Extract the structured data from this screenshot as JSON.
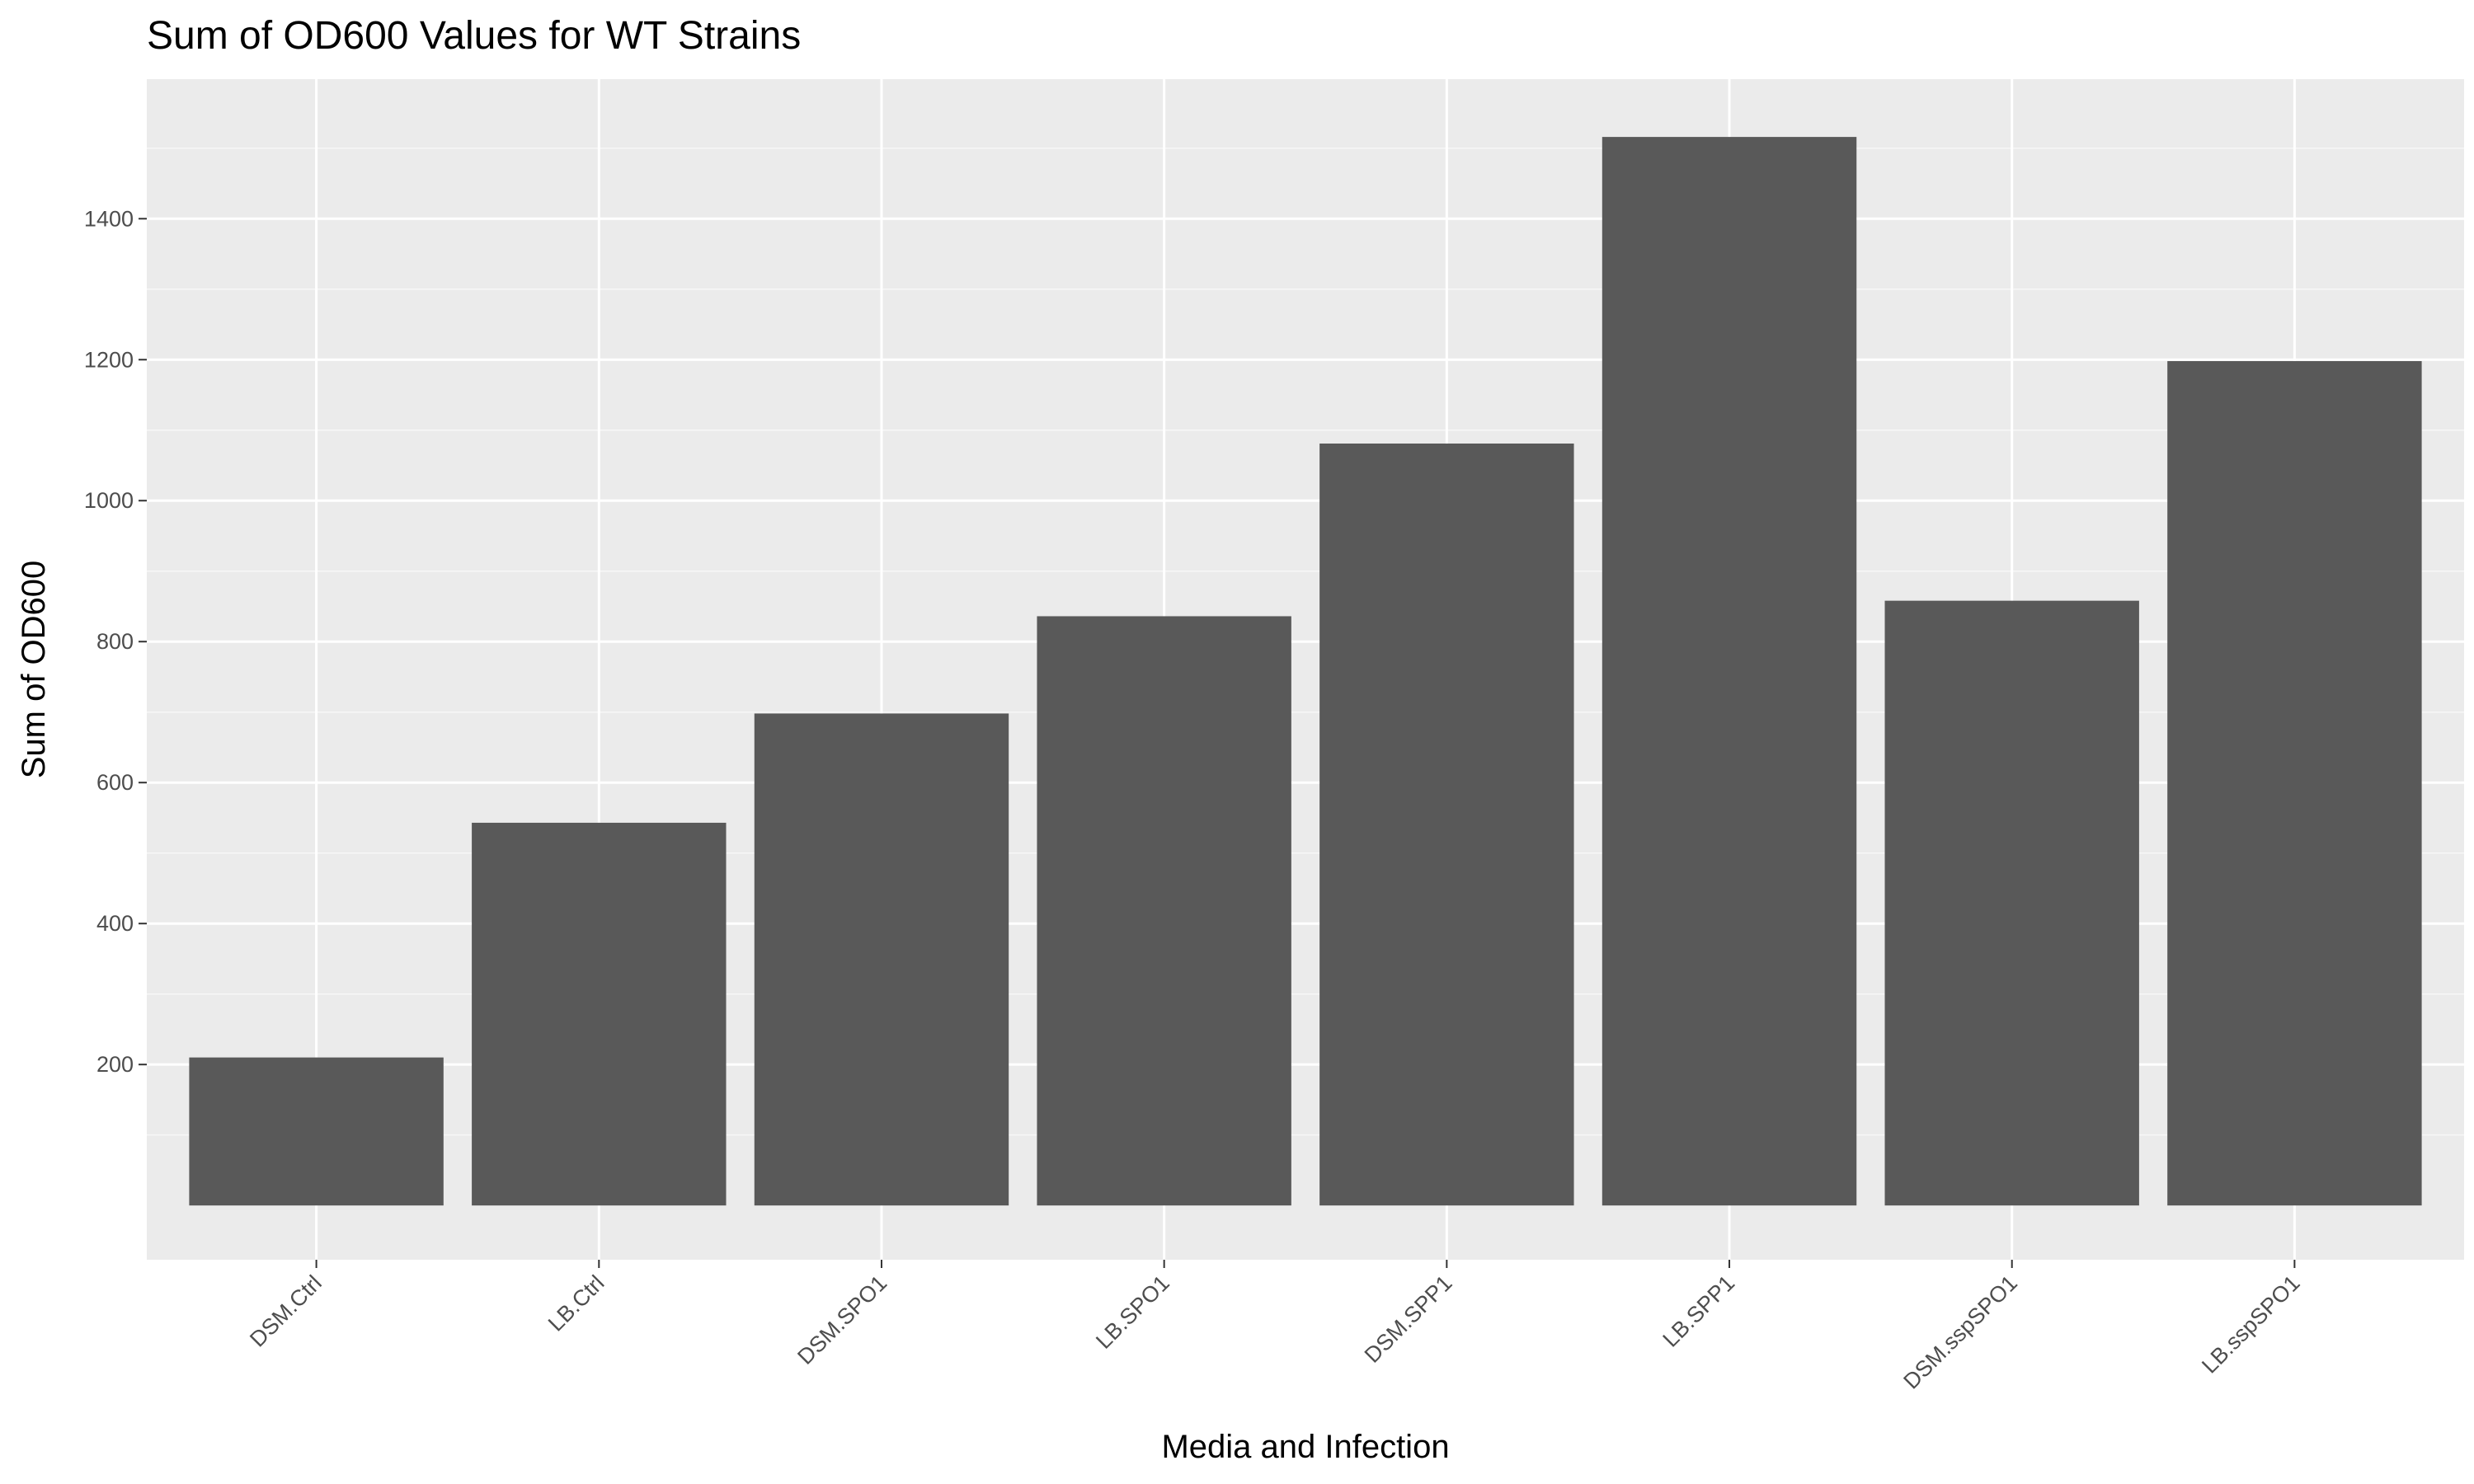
{
  "chart_data": {
    "type": "bar",
    "title": "Sum of OD600 Values for WT Strains",
    "xlabel": "Media and Infection",
    "ylabel": "Sum of OD600",
    "categories": [
      "DSM.Ctrl",
      "LB.Ctrl",
      "DSM.SPO1",
      "LB.SPO1",
      "DSM.SPP1",
      "LB.SPP1",
      "DSM.sspSPO1",
      "LB.sspSPO1"
    ],
    "values": [
      210,
      543,
      698,
      836,
      1081,
      1516,
      858,
      1198
    ],
    "ylim": [
      -77,
      1598
    ],
    "yticks": [
      200,
      400,
      600,
      800,
      1000,
      1200,
      1400
    ],
    "grid": true,
    "legend": "none",
    "colors": {
      "bar": "#595959",
      "panel": "#ebebeb",
      "grid_major": "#ffffff",
      "grid_minor": "#f7f7f7",
      "tick_label": "#4d4d4d",
      "tick_mark": "#333333"
    }
  }
}
